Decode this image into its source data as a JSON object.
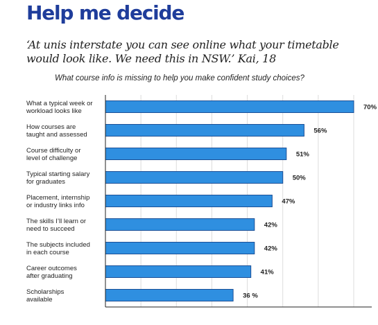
{
  "header": {
    "title": "Help me decide",
    "quote": "‘At unis interstate you can see online what your timetable would look like. We need this in NSW.’ Kai, 18"
  },
  "chart_data": {
    "type": "bar",
    "orientation": "horizontal",
    "title": "What course info is missing to help you make confident study choices?",
    "categories": [
      [
        "What a typical week or",
        "workload looks like"
      ],
      [
        "How courses are",
        "taught and assessed"
      ],
      [
        "Course difficulty or",
        "level of challenge"
      ],
      [
        "Typical starting salary",
        "for graduates"
      ],
      [
        "Placement, internship",
        "or industry links info"
      ],
      [
        "The skills I’ll learn or",
        "need to succeed"
      ],
      [
        "The subjects included",
        "in each course"
      ],
      [
        "Career outcomes",
        "after graduating"
      ],
      [
        "Scholarships",
        "available"
      ]
    ],
    "values": [
      70,
      56,
      51,
      50,
      47,
      42,
      42,
      41,
      36
    ],
    "value_labels": [
      "70%",
      "56%",
      "51%",
      "50%",
      "47%",
      "42%",
      "42%",
      "41%",
      "36 %"
    ],
    "xlim": [
      0,
      75
    ],
    "grid": true,
    "bar_color": "#2f8fe0",
    "bar_stroke": "#1b4f96"
  }
}
